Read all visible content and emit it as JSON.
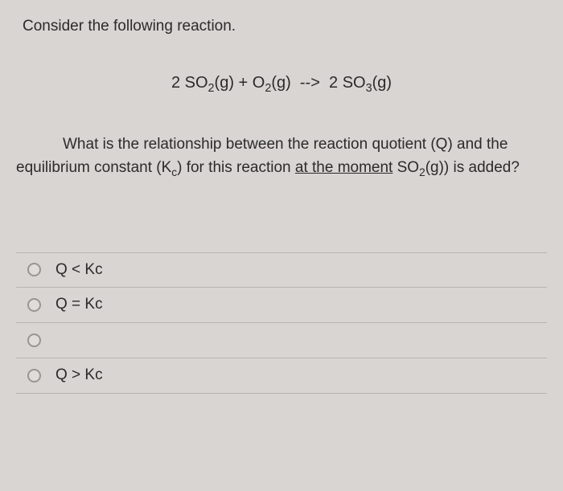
{
  "prompt_intro": "Consider the following reaction.",
  "equation": "2 SO₂(g) + O₂(g)  -->  2 SO₃(g)",
  "question_segments": {
    "part1": "What is the relationship between the reaction quotient (Q) and the equilibrium constant (K",
    "sub_c": "c",
    "part2": ") for this reaction ",
    "underlined": "at the moment",
    "part3": " SO",
    "sub_2": "2",
    "part4": "(g)) is added?"
  },
  "options": [
    {
      "label": "Q < Kc"
    },
    {
      "label": "Q = Kc"
    },
    {
      "label": ""
    },
    {
      "label": "Q > Kc"
    }
  ],
  "styling": {
    "background_color": "#d8d5d2",
    "text_color": "#2b2b2b",
    "border_color": "#b8b5b2",
    "radio_border": "#9a9590",
    "font_size_body": 19,
    "font_size_equation": 20
  }
}
